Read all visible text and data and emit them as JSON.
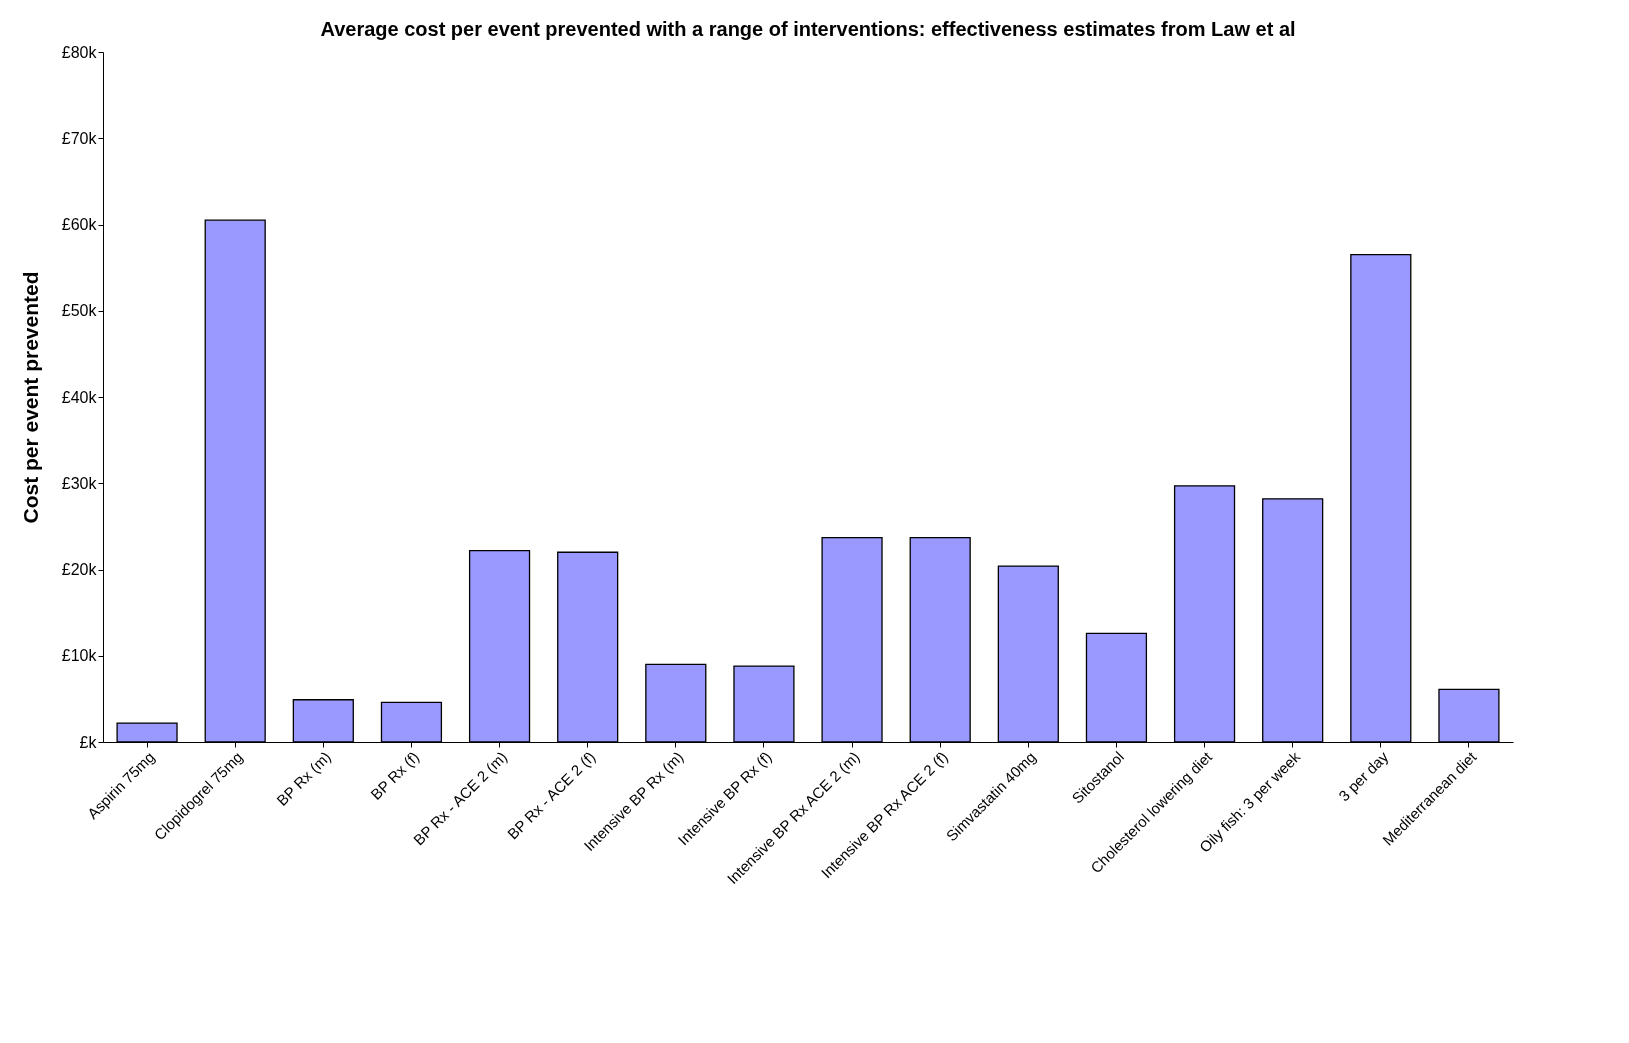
{
  "chart_data": {
    "type": "bar",
    "title": "Average cost per event prevented with a range of interventions: effectiveness estimates from Law et al",
    "ylabel": "Cost per event prevented",
    "categories": [
      "Aspirin 75mg",
      "Clopidogrel 75mg",
      "BP Rx (m)",
      "BP Rx (f)",
      "BP Rx - ACE 2 (m)",
      "BP Rx - ACE 2 (f)",
      "Intensive BP Rx (m)",
      "Intensive BP Rx (f)",
      "Intensive BP Rx ACE 2 (m)",
      "Intensive BP Rx ACE 2 (f)",
      "Simvastatin 40mg",
      "Sitostanol",
      "Cholesterol lowering diet",
      "Oily fish: 3 per week",
      "3 per day",
      "Mediterranean diet"
    ],
    "values": [
      2200,
      60500,
      4900,
      4600,
      22200,
      22000,
      9000,
      8800,
      23700,
      23700,
      20400,
      12600,
      29700,
      28200,
      56500,
      6100
    ],
    "color": "#9999ff",
    "ylim": [
      0,
      80000
    ],
    "yticks": [
      {
        "value": 0,
        "label": "£k"
      },
      {
        "value": 10000,
        "label": "£10k"
      },
      {
        "value": 20000,
        "label": "£20k"
      },
      {
        "value": 30000,
        "label": "£30k"
      },
      {
        "value": 40000,
        "label": "£40k"
      },
      {
        "value": 50000,
        "label": "£50k"
      },
      {
        "value": 60000,
        "label": "£60k"
      },
      {
        "value": 70000,
        "label": "£70k"
      },
      {
        "value": 80000,
        "label": "£80k"
      }
    ],
    "grid": false
  }
}
